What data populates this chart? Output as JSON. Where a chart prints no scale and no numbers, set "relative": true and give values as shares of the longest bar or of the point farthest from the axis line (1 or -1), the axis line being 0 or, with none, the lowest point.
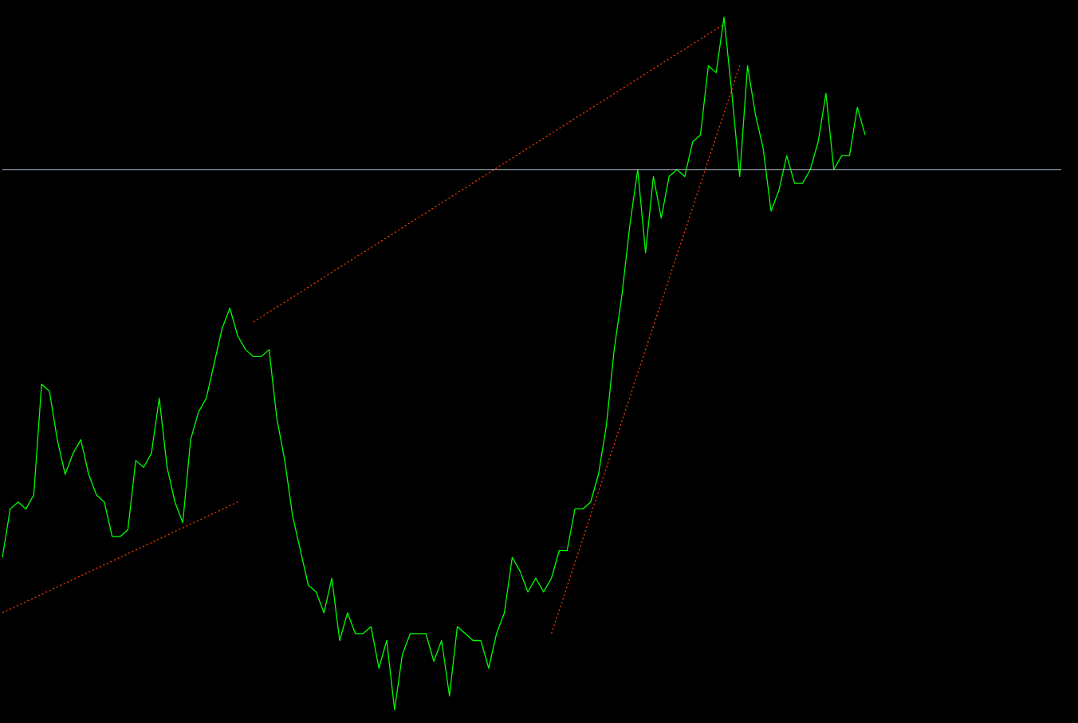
{
  "chart_data": {
    "type": "line",
    "relative": true,
    "marker": "none",
    "categories": [
      null,
      null,
      null,
      null,
      null,
      null,
      null,
      null,
      null,
      null,
      null,
      null,
      null,
      null,
      null,
      null,
      null,
      null,
      null,
      null,
      null,
      null,
      null,
      null,
      null,
      null,
      null,
      null,
      null,
      null,
      null,
      null,
      null,
      null,
      null,
      null,
      null,
      null,
      null,
      null,
      null,
      null,
      null,
      null,
      null,
      null,
      null,
      null,
      null,
      null,
      null,
      null,
      null,
      null,
      null,
      null,
      null,
      null,
      null,
      null,
      null,
      null,
      null,
      null,
      null,
      null,
      null,
      null,
      null,
      null,
      null,
      null,
      null,
      null,
      null,
      null,
      null,
      null,
      null,
      null,
      null,
      null,
      null,
      null,
      null,
      null,
      null,
      null,
      null,
      null,
      null,
      null,
      null,
      null,
      null,
      null,
      null,
      null,
      null,
      null,
      null,
      null,
      null,
      null,
      null,
      null,
      null,
      null,
      null,
      null,
      null,
      null,
      null,
      null,
      null,
      null,
      null,
      null,
      null,
      null,
      null,
      null,
      null,
      null,
      null,
      null,
      null,
      null,
      null,
      null,
      null,
      null,
      null,
      null,
      null,
      null
    ],
    "series": [
      {
        "color": "#00ff00",
        "line_style": "solid",
        "values": [
          0.22,
          0.29,
          0.3,
          0.29,
          0.31,
          0.47,
          0.46,
          0.39,
          0.34,
          0.37,
          0.39,
          0.34,
          0.31,
          0.3,
          0.25,
          0.25,
          0.26,
          0.36,
          0.35,
          0.37,
          0.45,
          0.35,
          0.3,
          0.27,
          0.39,
          0.43,
          0.45,
          0.5,
          0.55,
          0.58,
          0.54,
          0.52,
          0.51,
          0.51,
          0.52,
          0.42,
          0.36,
          0.28,
          0.23,
          0.18,
          0.17,
          0.14,
          0.19,
          0.1,
          0.14,
          0.11,
          0.11,
          0.12,
          0.06,
          0.1,
          0,
          0.08,
          0.11,
          0.11,
          0.11,
          0.07,
          0.1,
          0.02,
          0.12,
          0.11,
          0.1,
          0.1,
          0.06,
          0.11,
          0.14,
          0.22,
          0.2,
          0.17,
          0.19,
          0.17,
          0.19,
          0.23,
          0.23,
          0.29,
          0.29,
          0.3,
          0.34,
          0.41,
          0.52,
          0.6,
          0.7,
          0.78,
          0.66,
          0.77,
          0.71,
          0.77,
          0.78,
          0.77,
          0.82,
          0.83,
          0.93,
          0.92,
          1,
          0.89,
          0.77,
          0.93,
          0.86,
          0.81,
          0.72,
          0.75,
          0.8,
          0.76,
          0.76,
          0.78,
          0.82,
          0.89,
          0.78,
          0.8,
          0.8,
          0.87,
          0.83,
          null,
          null,
          null,
          null,
          null,
          null,
          null,
          null,
          null,
          null,
          null,
          null,
          null,
          null,
          null,
          null,
          null,
          null,
          null,
          null,
          null,
          null,
          null,
          null,
          null
        ]
      },
      {
        "color": "#ff3c00",
        "line_style": "dotted",
        "values": [
          0.14,
          null,
          null,
          null,
          null,
          null,
          null,
          null,
          null,
          null,
          null,
          null,
          null,
          null,
          null,
          null,
          null,
          null,
          null,
          null,
          null,
          null,
          null,
          null,
          null,
          null,
          null,
          null,
          null,
          null,
          0.3,
          null,
          null,
          null,
          null,
          null,
          null,
          null,
          null,
          null,
          null,
          null,
          null,
          null,
          null,
          null,
          null,
          null,
          null,
          null,
          null,
          null,
          null,
          null,
          null,
          null,
          null,
          null,
          null,
          null,
          null,
          null,
          null,
          null,
          null,
          null,
          null,
          null,
          null,
          null,
          null,
          null,
          null,
          null,
          null,
          null,
          null,
          null,
          null,
          null,
          null,
          null,
          null,
          null,
          null,
          null,
          null,
          null,
          null,
          null,
          null,
          null,
          null,
          null,
          null,
          null,
          null,
          null,
          null,
          null,
          null,
          null,
          null,
          null,
          null,
          null,
          null,
          null,
          null,
          null,
          null,
          null,
          null,
          null,
          null,
          null,
          null,
          null,
          null,
          null,
          null,
          null,
          null,
          null,
          null,
          null,
          null,
          null,
          null,
          null,
          null,
          null,
          null,
          null,
          null,
          null
        ]
      },
      {
        "color": "#ff3c00",
        "line_style": "dotted",
        "values": [
          null,
          null,
          null,
          null,
          null,
          null,
          null,
          null,
          null,
          null,
          null,
          null,
          null,
          null,
          null,
          null,
          null,
          null,
          null,
          null,
          null,
          null,
          null,
          null,
          null,
          null,
          null,
          null,
          null,
          null,
          null,
          null,
          0.56,
          null,
          null,
          null,
          null,
          null,
          null,
          null,
          null,
          null,
          null,
          null,
          null,
          null,
          null,
          null,
          null,
          null,
          null,
          null,
          null,
          null,
          null,
          null,
          null,
          null,
          null,
          null,
          null,
          null,
          null,
          null,
          null,
          null,
          null,
          null,
          null,
          null,
          null,
          null,
          null,
          null,
          null,
          null,
          null,
          null,
          null,
          null,
          null,
          null,
          null,
          null,
          null,
          null,
          null,
          null,
          null,
          null,
          null,
          null,
          0.99,
          null,
          null,
          null,
          null,
          null,
          null,
          null,
          null,
          null,
          null,
          null,
          null,
          null,
          null,
          null,
          null,
          null,
          null,
          null,
          null,
          null,
          null,
          null,
          null,
          null,
          null,
          null,
          null,
          null,
          null,
          null,
          null,
          null,
          null,
          null,
          null,
          null,
          null,
          null,
          null,
          null,
          null,
          null
        ]
      },
      {
        "color": "#ff3c00",
        "line_style": "dotted",
        "values": [
          null,
          null,
          null,
          null,
          null,
          null,
          null,
          null,
          null,
          null,
          null,
          null,
          null,
          null,
          null,
          null,
          null,
          null,
          null,
          null,
          null,
          null,
          null,
          null,
          null,
          null,
          null,
          null,
          null,
          null,
          null,
          null,
          null,
          null,
          null,
          null,
          null,
          null,
          null,
          null,
          null,
          null,
          null,
          null,
          null,
          null,
          null,
          null,
          null,
          null,
          null,
          null,
          null,
          null,
          null,
          null,
          null,
          null,
          null,
          null,
          null,
          null,
          null,
          null,
          null,
          null,
          null,
          null,
          null,
          null,
          0.11,
          null,
          null,
          null,
          null,
          null,
          null,
          null,
          null,
          null,
          null,
          null,
          null,
          null,
          null,
          null,
          null,
          null,
          null,
          null,
          null,
          null,
          null,
          null,
          0.93,
          null,
          null,
          null,
          null,
          null,
          null,
          null,
          null,
          null,
          null,
          null,
          null,
          null,
          null,
          null,
          null,
          null,
          null,
          null,
          null,
          null,
          null,
          null,
          null,
          null,
          null,
          null,
          null,
          null,
          null,
          null,
          null,
          null,
          null,
          null,
          null,
          null,
          null,
          null,
          null,
          null
        ]
      }
    ],
    "ref_lines": [
      {
        "axis": "y",
        "value": 0.78,
        "color": "#9fb0c0"
      }
    ]
  }
}
